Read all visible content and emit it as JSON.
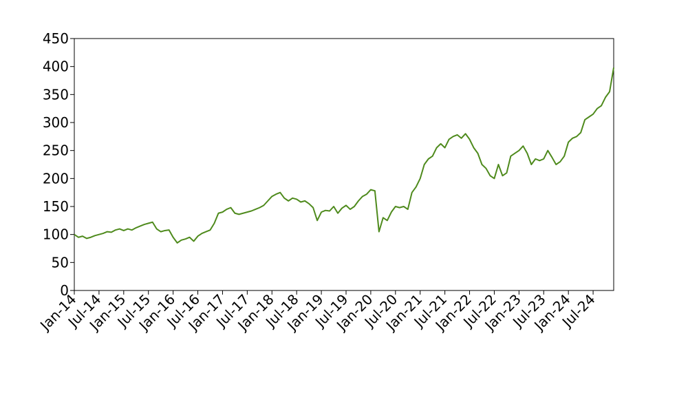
{
  "chart_data": {
    "type": "line",
    "x": [
      "2014-01",
      "2014-02",
      "2014-03",
      "2014-04",
      "2014-05",
      "2014-06",
      "2014-07",
      "2014-08",
      "2014-09",
      "2014-10",
      "2014-11",
      "2014-12",
      "2015-01",
      "2015-02",
      "2015-03",
      "2015-04",
      "2015-05",
      "2015-06",
      "2015-07",
      "2015-08",
      "2015-09",
      "2015-10",
      "2015-11",
      "2015-12",
      "2016-01",
      "2016-02",
      "2016-03",
      "2016-04",
      "2016-05",
      "2016-06",
      "2016-07",
      "2016-08",
      "2016-09",
      "2016-10",
      "2016-11",
      "2016-12",
      "2017-01",
      "2017-02",
      "2017-03",
      "2017-04",
      "2017-05",
      "2017-06",
      "2017-07",
      "2017-08",
      "2017-09",
      "2017-10",
      "2017-11",
      "2017-12",
      "2018-01",
      "2018-02",
      "2018-03",
      "2018-04",
      "2018-05",
      "2018-06",
      "2018-07",
      "2018-08",
      "2018-09",
      "2018-10",
      "2018-11",
      "2018-12",
      "2019-01",
      "2019-02",
      "2019-03",
      "2019-04",
      "2019-05",
      "2019-06",
      "2019-07",
      "2019-08",
      "2019-09",
      "2019-10",
      "2019-11",
      "2019-12",
      "2020-01",
      "2020-02",
      "2020-03",
      "2020-04",
      "2020-05",
      "2020-06",
      "2020-07",
      "2020-08",
      "2020-09",
      "2020-10",
      "2020-11",
      "2020-12",
      "2021-01",
      "2021-02",
      "2021-03",
      "2021-04",
      "2021-05",
      "2021-06",
      "2021-07",
      "2021-08",
      "2021-09",
      "2021-10",
      "2021-11",
      "2021-12",
      "2022-01",
      "2022-02",
      "2022-03",
      "2022-04",
      "2022-05",
      "2022-06",
      "2022-07",
      "2022-08",
      "2022-09",
      "2022-10",
      "2022-11",
      "2022-12",
      "2023-01",
      "2023-02",
      "2023-03",
      "2023-04",
      "2023-05",
      "2023-06",
      "2023-07",
      "2023-08",
      "2023-09",
      "2023-10",
      "2023-11",
      "2023-12",
      "2024-01",
      "2024-02",
      "2024-03",
      "2024-04",
      "2024-05",
      "2024-06",
      "2024-07",
      "2024-08",
      "2024-09",
      "2024-10",
      "2024-11",
      "2024-12"
    ],
    "values": [
      100,
      95,
      97,
      93,
      95,
      98,
      100,
      102,
      105,
      104,
      108,
      110,
      107,
      110,
      108,
      112,
      115,
      118,
      120,
      122,
      110,
      105,
      107,
      108,
      95,
      85,
      90,
      92,
      95,
      88,
      97,
      102,
      105,
      108,
      120,
      138,
      140,
      145,
      148,
      138,
      136,
      138,
      140,
      142,
      145,
      148,
      152,
      160,
      168,
      172,
      175,
      165,
      160,
      165,
      163,
      158,
      160,
      155,
      148,
      125,
      140,
      143,
      142,
      150,
      138,
      147,
      152,
      145,
      150,
      160,
      168,
      172,
      180,
      178,
      105,
      130,
      125,
      140,
      150,
      148,
      150,
      145,
      175,
      185,
      200,
      225,
      235,
      240,
      255,
      262,
      255,
      270,
      275,
      278,
      272,
      280,
      270,
      255,
      245,
      225,
      218,
      205,
      200,
      225,
      205,
      210,
      240,
      245,
      250,
      258,
      245,
      225,
      235,
      232,
      235,
      250,
      238,
      225,
      230,
      240,
      265,
      272,
      275,
      282,
      305,
      310,
      315,
      325,
      330,
      345,
      355,
      398
    ],
    "color": "#4e8a1c",
    "xlim": [
      "2014-01",
      "2024-12"
    ],
    "xticks": [
      {
        "value": "2014-01",
        "label": "Jan-14"
      },
      {
        "value": "2014-07",
        "label": "Jul-14"
      },
      {
        "value": "2015-01",
        "label": "Jan-15"
      },
      {
        "value": "2015-07",
        "label": "Jul-15"
      },
      {
        "value": "2016-01",
        "label": "Jan-16"
      },
      {
        "value": "2016-07",
        "label": "Jul-16"
      },
      {
        "value": "2017-01",
        "label": "Jan-17"
      },
      {
        "value": "2017-07",
        "label": "Jul-17"
      },
      {
        "value": "2018-01",
        "label": "Jan-18"
      },
      {
        "value": "2018-07",
        "label": "Jul-18"
      },
      {
        "value": "2019-01",
        "label": "Jan-19"
      },
      {
        "value": "2019-07",
        "label": "Jul-19"
      },
      {
        "value": "2020-01",
        "label": "Jan-20"
      },
      {
        "value": "2020-07",
        "label": "Jul-20"
      },
      {
        "value": "2021-01",
        "label": "Jan-21"
      },
      {
        "value": "2021-07",
        "label": "Jul-21"
      },
      {
        "value": "2022-01",
        "label": "Jan-22"
      },
      {
        "value": "2022-07",
        "label": "Jul-22"
      },
      {
        "value": "2023-01",
        "label": "Jan-23"
      },
      {
        "value": "2023-07",
        "label": "Jul-23"
      },
      {
        "value": "2024-01",
        "label": "Jan-24"
      },
      {
        "value": "2024-07",
        "label": "Jul-24"
      }
    ],
    "ylim": [
      0,
      450
    ],
    "yticks": [
      0,
      50,
      100,
      150,
      200,
      250,
      300,
      350,
      400,
      450
    ],
    "grid": false
  }
}
